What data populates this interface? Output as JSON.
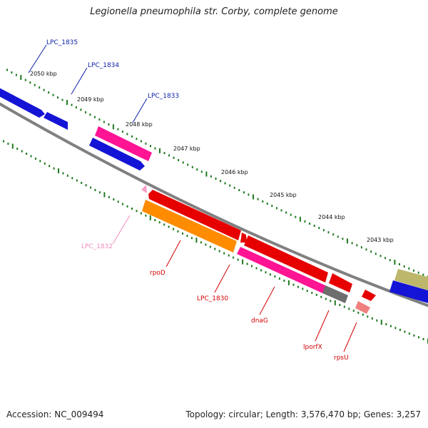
{
  "title": "Legionella pneumophila str. Corby, complete genome",
  "footer": {
    "accession": "Accession: NC_009494",
    "summary": "Topology: circular; Length: 3,576,470 bp; Genes: 3,257"
  },
  "ruler": {
    "labels": [
      "2050 kbp",
      "2049 kbp",
      "2048 kbp",
      "2047 kbp",
      "2046 kbp",
      "2045 kbp",
      "2044 kbp",
      "2043 kbp"
    ]
  },
  "colors": {
    "backbone": "#808080",
    "ticks": "#1f7a1f",
    "upper_label": "#0a1fa8",
    "lower_label": "#d40000",
    "lpc1832_label": "#f08cc0"
  },
  "genes": [
    {
      "name": "LPC_1835",
      "color": "#1414d6",
      "strand": "upper"
    },
    {
      "name": "LPC_1834",
      "color": "#1414d6",
      "strand": "upper"
    },
    {
      "name": "LPC_1833",
      "color": "#ff1493",
      "strand": "upper"
    },
    {
      "name": "",
      "color": "#1414d6",
      "strand": "upper"
    },
    {
      "name": "LPC_1832",
      "color": "#f4a0c8",
      "strand": "lower"
    },
    {
      "name": "rpoD",
      "color": "#e60000",
      "strand": "lower"
    },
    {
      "name": "LPC_1830",
      "color": "#ff8c00",
      "strand": "lower"
    },
    {
      "name": "dnaG",
      "color": "#e60000",
      "strand": "lower"
    },
    {
      "name": "",
      "color": "#ff1493",
      "strand": "lower"
    },
    {
      "name": "lporfX",
      "color": "#6e6e6e",
      "strand": "lower"
    },
    {
      "name": "",
      "color": "#e60000",
      "strand": "lower"
    },
    {
      "name": "rpsU",
      "color": "#f08080",
      "strand": "lower"
    },
    {
      "name": "",
      "color": "#bdb76b",
      "strand": "upper"
    },
    {
      "name": "",
      "color": "#1414d6",
      "strand": "upper"
    }
  ]
}
